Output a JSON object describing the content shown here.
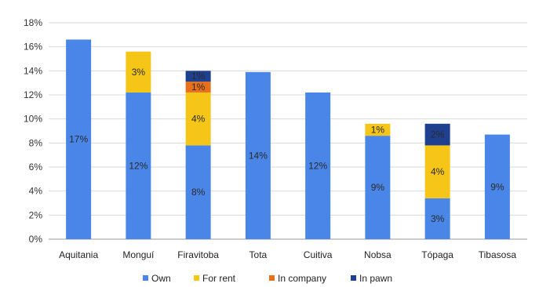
{
  "chart_data": {
    "type": "bar",
    "stacked": true,
    "categories": [
      "Aquitania",
      "Monguí",
      "Firavitoba",
      "Tota",
      "Cuitiva",
      "Nobsa",
      "Tópaga",
      "Tibasosa"
    ],
    "series": [
      {
        "name": "Own",
        "color": "#4A86E8",
        "values": [
          16.6,
          12.2,
          7.8,
          13.9,
          12.2,
          8.6,
          3.4,
          8.7
        ],
        "labels": [
          "17%",
          "12%",
          "8%",
          "14%",
          "12%",
          "9%",
          "3%",
          "9%"
        ]
      },
      {
        "name": "For rent",
        "color": "#F5C518",
        "values": [
          0,
          3.4,
          4.4,
          0,
          0,
          1.0,
          4.4,
          0
        ],
        "labels": [
          "",
          "3%",
          "4%",
          "",
          "",
          "1%",
          "4%",
          ""
        ]
      },
      {
        "name": "In company",
        "color": "#E8701A",
        "values": [
          0,
          0,
          0.9,
          0,
          0,
          0,
          0,
          0
        ],
        "labels": [
          "",
          "",
          "1%",
          "",
          "",
          "",
          "",
          ""
        ]
      },
      {
        "name": "In pawn",
        "color": "#1F3F8F",
        "values": [
          0,
          0,
          0.9,
          0,
          0,
          0,
          1.8,
          0
        ],
        "labels": [
          "",
          "",
          "1%",
          "",
          "",
          "",
          "2%",
          ""
        ]
      }
    ],
    "y_ticks": [
      "0%",
      "2%",
      "4%",
      "6%",
      "8%",
      "10%",
      "12%",
      "14%",
      "16%",
      "18%"
    ],
    "ylim": [
      0,
      18
    ],
    "grid": true,
    "legend_position": "bottom"
  }
}
